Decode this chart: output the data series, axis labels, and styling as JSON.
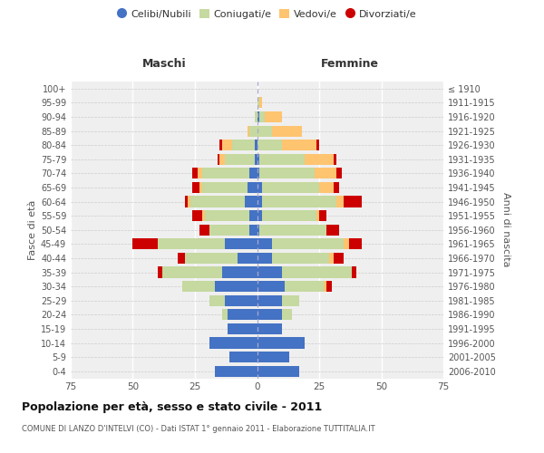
{
  "age_groups": [
    "0-4",
    "5-9",
    "10-14",
    "15-19",
    "20-24",
    "25-29",
    "30-34",
    "35-39",
    "40-44",
    "45-49",
    "50-54",
    "55-59",
    "60-64",
    "65-69",
    "70-74",
    "75-79",
    "80-84",
    "85-89",
    "90-94",
    "95-99",
    "100+"
  ],
  "birth_years": [
    "2006-2010",
    "2001-2005",
    "1996-2000",
    "1991-1995",
    "1986-1990",
    "1981-1985",
    "1976-1980",
    "1971-1975",
    "1966-1970",
    "1961-1965",
    "1956-1960",
    "1951-1955",
    "1946-1950",
    "1941-1945",
    "1936-1940",
    "1931-1935",
    "1926-1930",
    "1921-1925",
    "1916-1920",
    "1911-1915",
    "≤ 1910"
  ],
  "maschi": {
    "celibi": [
      17,
      11,
      19,
      12,
      12,
      13,
      17,
      14,
      8,
      13,
      3,
      3,
      5,
      4,
      3,
      1,
      1,
      0,
      0,
      0,
      0
    ],
    "coniugati": [
      0,
      0,
      0,
      0,
      2,
      6,
      13,
      24,
      21,
      27,
      16,
      18,
      22,
      18,
      19,
      12,
      9,
      3,
      1,
      0,
      0
    ],
    "vedovi": [
      0,
      0,
      0,
      0,
      0,
      0,
      0,
      0,
      0,
      0,
      0,
      1,
      1,
      1,
      2,
      2,
      4,
      1,
      0,
      0,
      0
    ],
    "divorziati": [
      0,
      0,
      0,
      0,
      0,
      0,
      0,
      2,
      3,
      10,
      4,
      4,
      1,
      3,
      2,
      1,
      1,
      0,
      0,
      0,
      0
    ]
  },
  "femmine": {
    "nubili": [
      17,
      13,
      19,
      10,
      10,
      10,
      11,
      10,
      6,
      6,
      1,
      2,
      2,
      2,
      1,
      1,
      0,
      0,
      1,
      0,
      0
    ],
    "coniugate": [
      0,
      0,
      0,
      0,
      4,
      7,
      16,
      28,
      23,
      29,
      27,
      22,
      30,
      23,
      22,
      18,
      10,
      6,
      2,
      1,
      0
    ],
    "vedove": [
      0,
      0,
      0,
      0,
      0,
      0,
      1,
      0,
      2,
      2,
      0,
      1,
      3,
      6,
      9,
      12,
      14,
      12,
      7,
      1,
      0
    ],
    "divorziate": [
      0,
      0,
      0,
      0,
      0,
      0,
      2,
      2,
      4,
      5,
      5,
      3,
      7,
      2,
      2,
      1,
      1,
      0,
      0,
      0,
      0
    ]
  },
  "colors": {
    "celibi": "#4472c4",
    "coniugati": "#c5d9a0",
    "vedovi": "#ffc470",
    "divorziati": "#cc0000"
  },
  "legend_labels": [
    "Celibi/Nubili",
    "Coniugati/e",
    "Vedovi/e",
    "Divorziati/e"
  ],
  "title": "Popolazione per età, sesso e stato civile - 2011",
  "subtitle": "COMUNE DI LANZO D'INTELVI (CO) - Dati ISTAT 1° gennaio 2011 - Elaborazione TUTTITALIA.IT",
  "ylabel_left": "Fasce di età",
  "ylabel_right": "Anni di nascita",
  "label_maschi": "Maschi",
  "label_femmine": "Femmine",
  "xlim": 75,
  "bg_color": "#ffffff",
  "plot_bg": "#efefef"
}
